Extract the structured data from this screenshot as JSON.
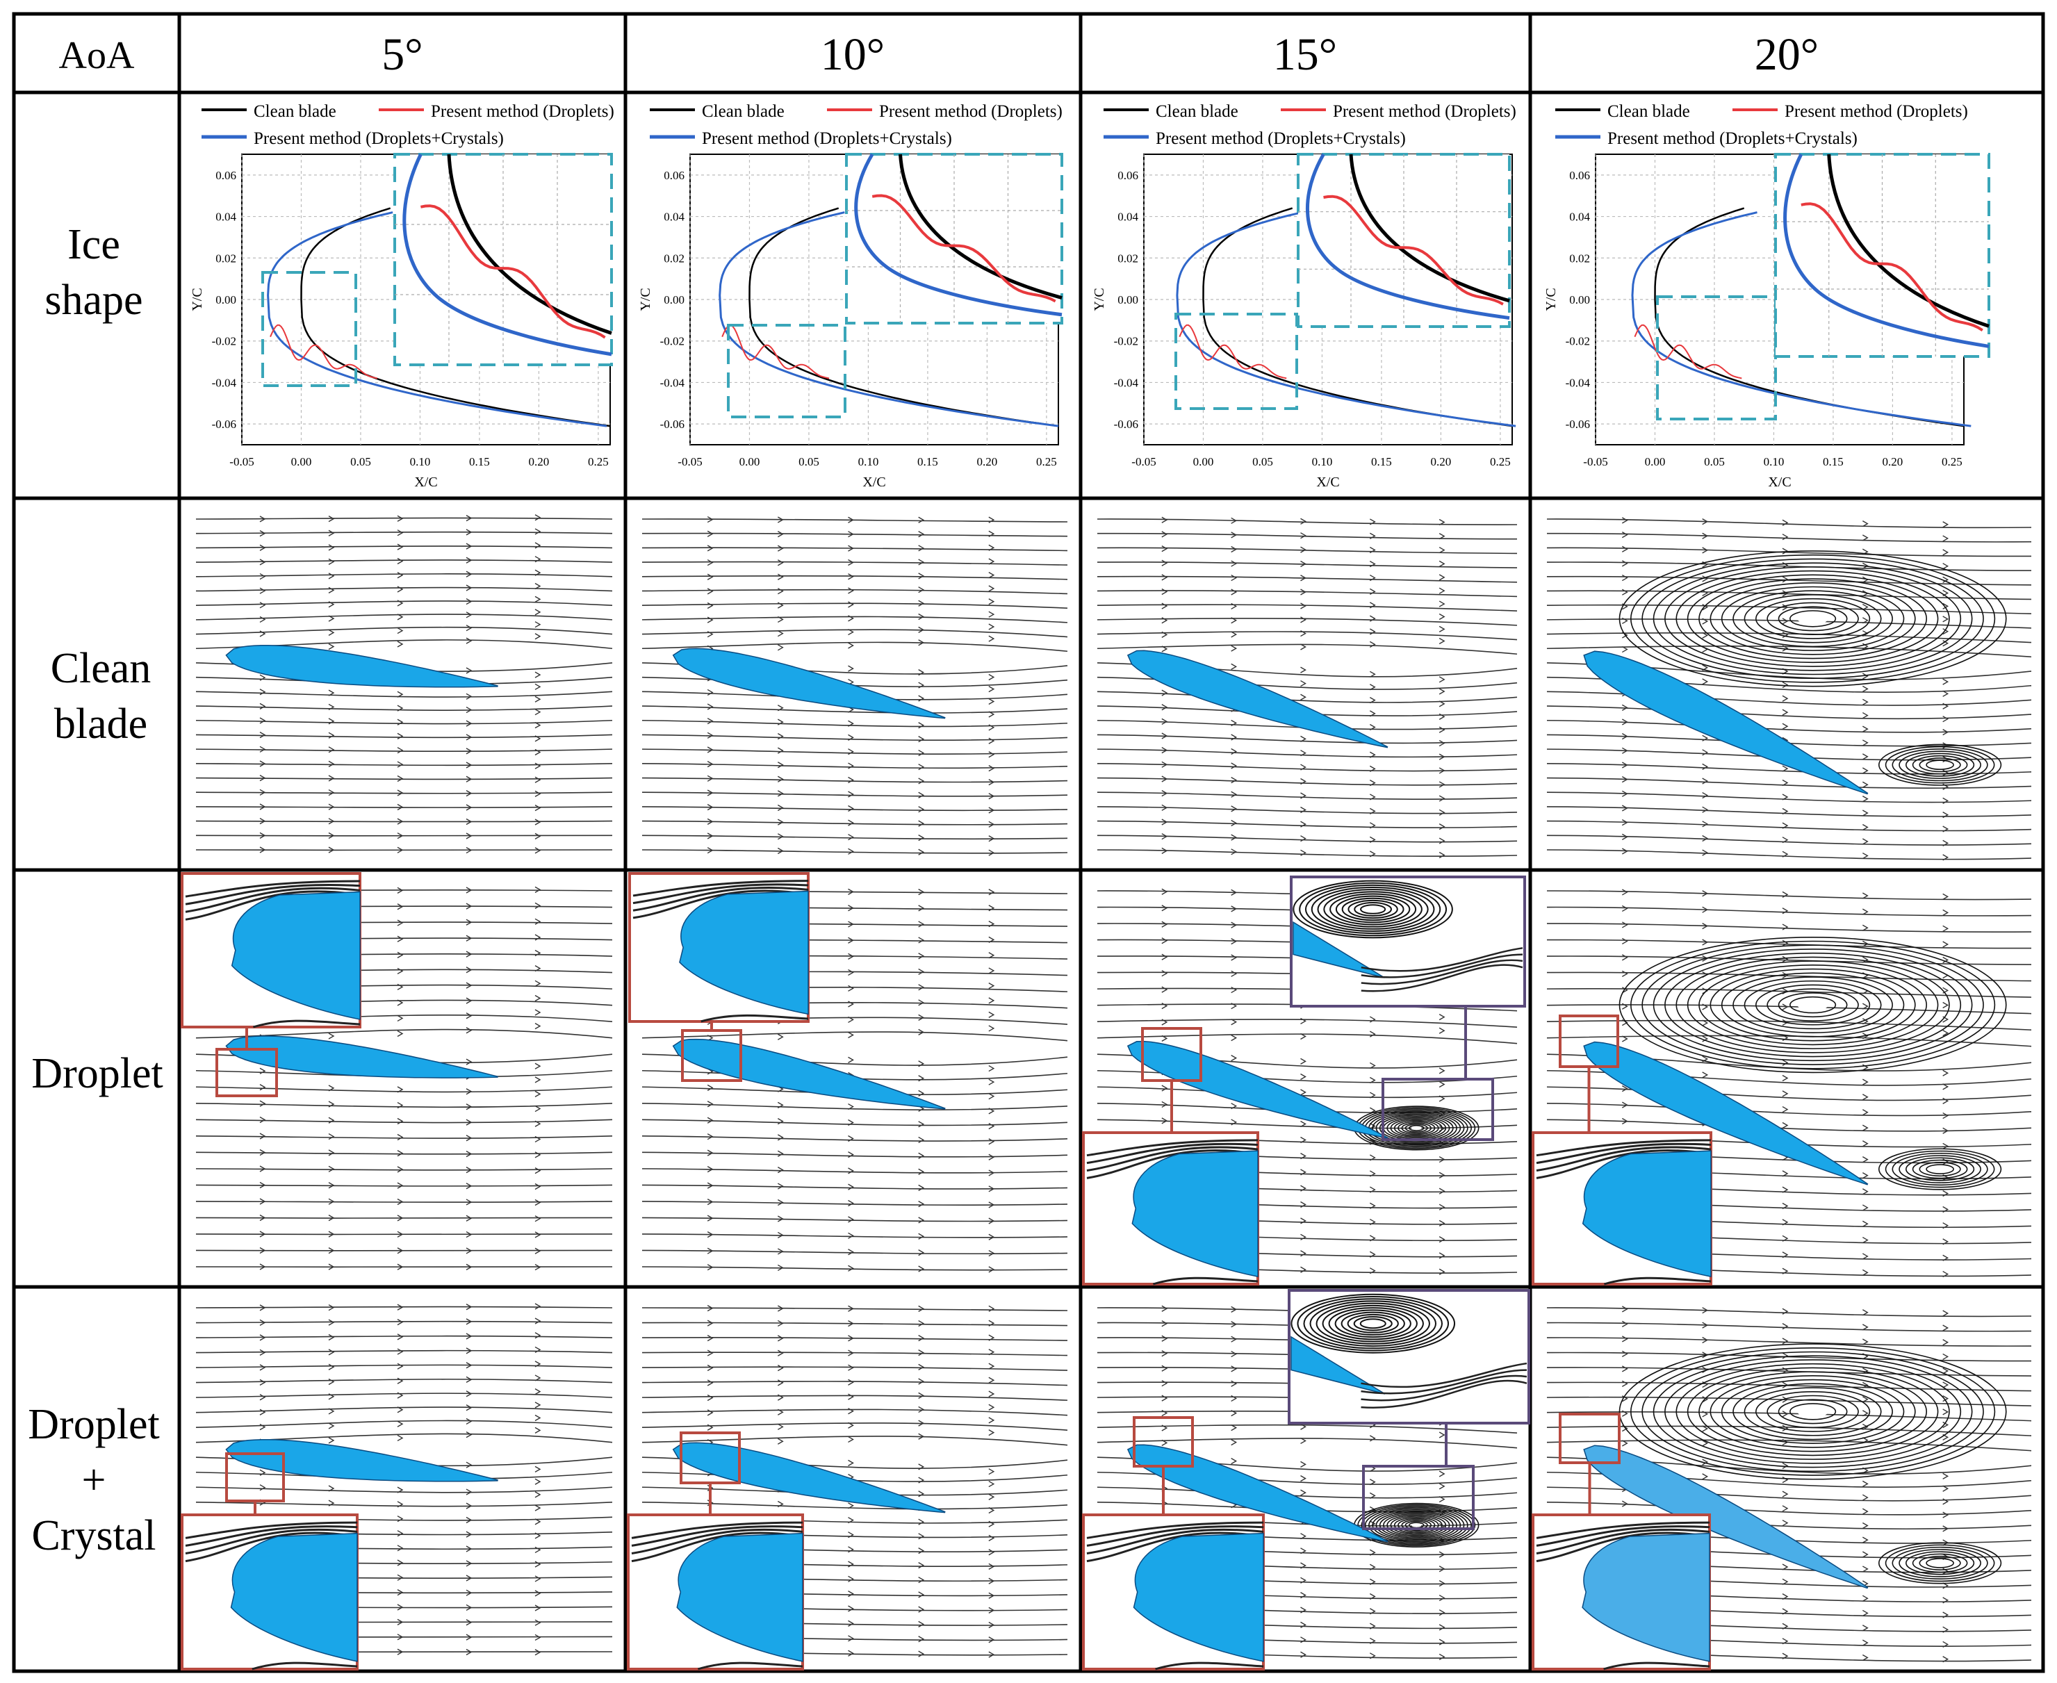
{
  "header": {
    "corner": "AoA",
    "angles": [
      "5°",
      "10°",
      "15°",
      "20°"
    ]
  },
  "rows": [
    {
      "lines": [
        "Ice",
        "shape"
      ]
    },
    {
      "lines": [
        "Clean",
        "blade"
      ]
    },
    {
      "lines": [
        "Droplet"
      ]
    },
    {
      "lines": [
        "Droplet",
        "+",
        "Crystal"
      ]
    }
  ],
  "plot": {
    "xlabel": "X/C",
    "ylabel": "Y/C",
    "xticks": [
      "-0.05",
      "0.00",
      "0.05",
      "0.10",
      "0.15",
      "0.20",
      "0.25"
    ],
    "yticks": [
      "0.06",
      "0.04",
      "0.02",
      "0.00",
      "-0.02",
      "-0.04",
      "-0.06"
    ],
    "xlim": [
      -0.05,
      0.26
    ],
    "ylim": [
      -0.07,
      0.07
    ],
    "legend": [
      "Clean blade",
      "Present method (Droplets)",
      "Present method (Droplets+Crystals)"
    ],
    "colors": {
      "clean": "#000000",
      "droplets": "#e8393d",
      "crystals": "#2f66c9",
      "zoombox": "#3aa6b9",
      "blade": "#1aa6e8",
      "inset": "#b84a40",
      "inset2": "#5a4a7a"
    }
  }
}
